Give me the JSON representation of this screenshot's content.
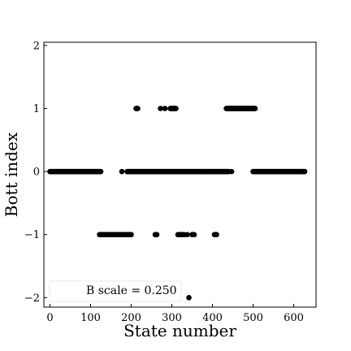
{
  "chart_data": {
    "type": "scatter",
    "xlabel": "State number",
    "ylabel": "Bott index",
    "xlim": [
      -15,
      655
    ],
    "ylim": [
      -2.15,
      2.05
    ],
    "xticks": [
      0,
      100,
      200,
      300,
      400,
      500,
      600
    ],
    "yticks": [
      -2,
      -1,
      0,
      1,
      2
    ],
    "xtick_labels": [
      "0",
      "100",
      "200",
      "300",
      "400",
      "500",
      "600"
    ],
    "ytick_labels": [
      "−2",
      "−1",
      "0",
      "1",
      "2"
    ],
    "grid": false,
    "legend_position": "lower-left",
    "legend": {
      "label": "B scale = 0.250"
    },
    "marker_color": "#000000",
    "runs": [
      {
        "x_start": 0,
        "x_end": 125,
        "y": 0
      },
      {
        "x_start": 122,
        "x_end": 200,
        "y": -1
      },
      {
        "x_start": 177,
        "x_end": 177,
        "y": 0
      },
      {
        "x_start": 190,
        "x_end": 440,
        "y": 0
      },
      {
        "x_start": 212,
        "x_end": 216,
        "y": 1
      },
      {
        "x_start": 259,
        "x_end": 263,
        "y": -1
      },
      {
        "x_start": 272,
        "x_end": 272,
        "y": 1
      },
      {
        "x_start": 283,
        "x_end": 283,
        "y": 1
      },
      {
        "x_start": 296,
        "x_end": 310,
        "y": 1
      },
      {
        "x_start": 315,
        "x_end": 330,
        "y": -1
      },
      {
        "x_start": 338,
        "x_end": 338,
        "y": -1
      },
      {
        "x_start": 342,
        "x_end": 342,
        "y": -2
      },
      {
        "x_start": 350,
        "x_end": 355,
        "y": -1
      },
      {
        "x_start": 405,
        "x_end": 410,
        "y": -1
      },
      {
        "x_start": 434,
        "x_end": 505,
        "y": 1
      },
      {
        "x_start": 447,
        "x_end": 447,
        "y": 0
      },
      {
        "x_start": 500,
        "x_end": 627,
        "y": 0
      }
    ]
  }
}
